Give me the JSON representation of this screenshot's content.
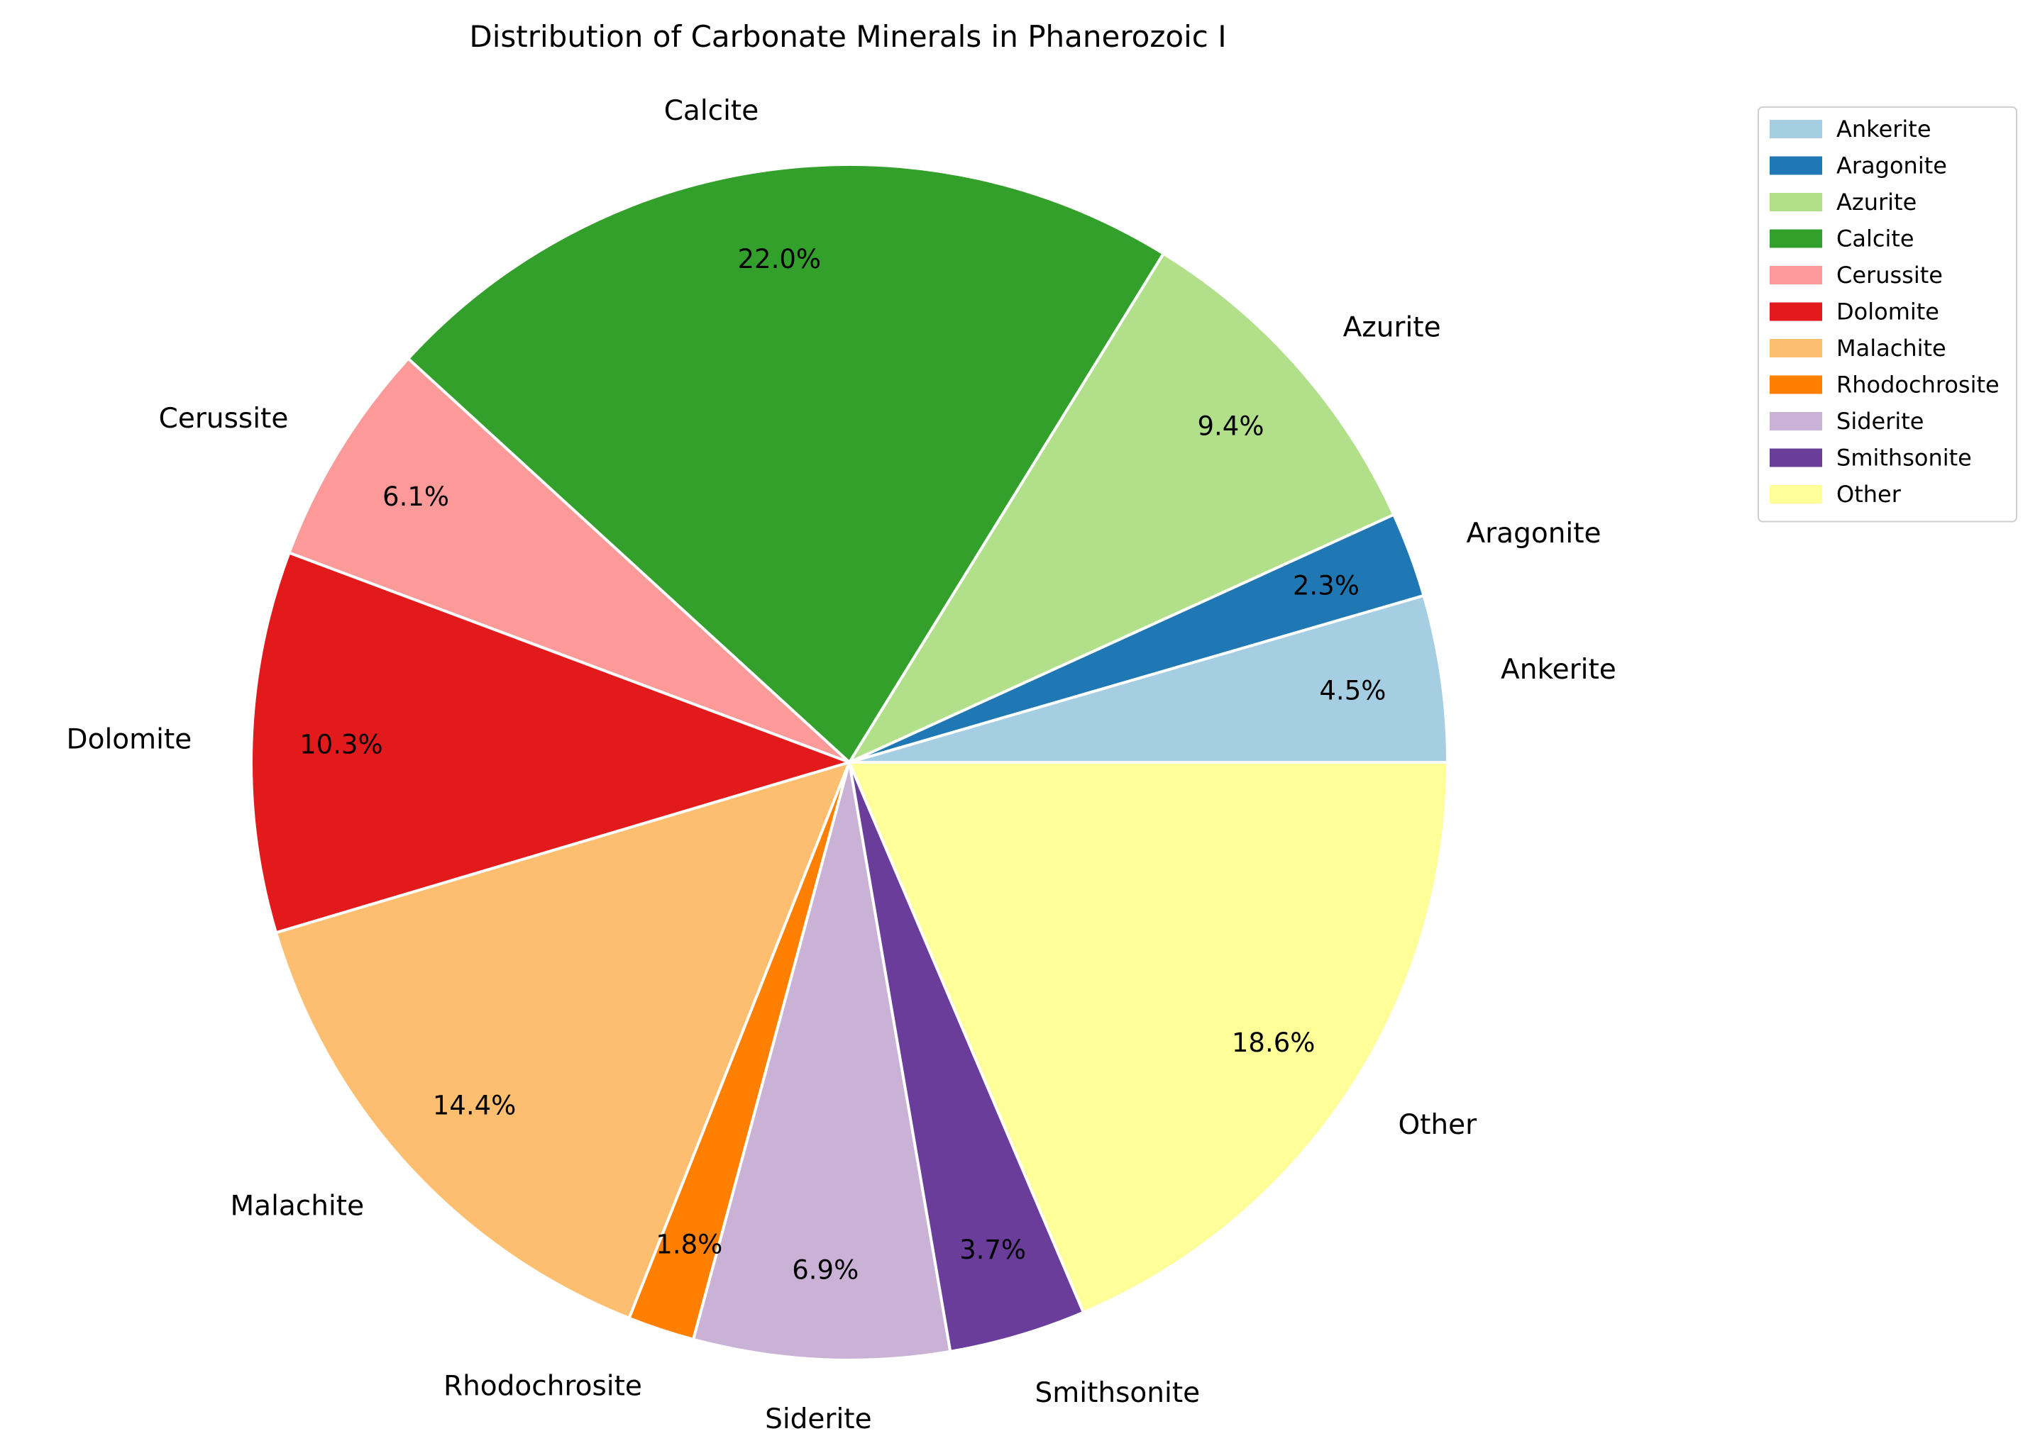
{
  "chart_data": {
    "type": "pie",
    "title": "Distribution of Carbonate Minerals in Phanerozoic I",
    "legend_position": "top-right",
    "slices": [
      {
        "label": "Ankerite",
        "value": 4.5,
        "pct_label": "4.5%",
        "color": "#a6cee3"
      },
      {
        "label": "Aragonite",
        "value": 2.3,
        "pct_label": "2.3%",
        "color": "#1f78b4"
      },
      {
        "label": "Azurite",
        "value": 9.4,
        "pct_label": "9.4%",
        "color": "#b2df8a"
      },
      {
        "label": "Calcite",
        "value": 22.0,
        "pct_label": "22.0%",
        "color": "#33a02c"
      },
      {
        "label": "Cerussite",
        "value": 6.1,
        "pct_label": "6.1%",
        "color": "#fb9a99"
      },
      {
        "label": "Dolomite",
        "value": 10.3,
        "pct_label": "10.3%",
        "color": "#e31a1c"
      },
      {
        "label": "Malachite",
        "value": 14.4,
        "pct_label": "14.4%",
        "color": "#fdbf6f"
      },
      {
        "label": "Rhodochrosite",
        "value": 1.8,
        "pct_label": "1.8%",
        "color": "#ff7f00"
      },
      {
        "label": "Siderite",
        "value": 6.9,
        "pct_label": "6.9%",
        "color": "#cab2d6"
      },
      {
        "label": "Smithsonite",
        "value": 3.7,
        "pct_label": "3.7%",
        "color": "#6a3d9a"
      },
      {
        "label": "Other",
        "value": 18.6,
        "pct_label": "18.6%",
        "color": "#ffff99"
      }
    ]
  }
}
